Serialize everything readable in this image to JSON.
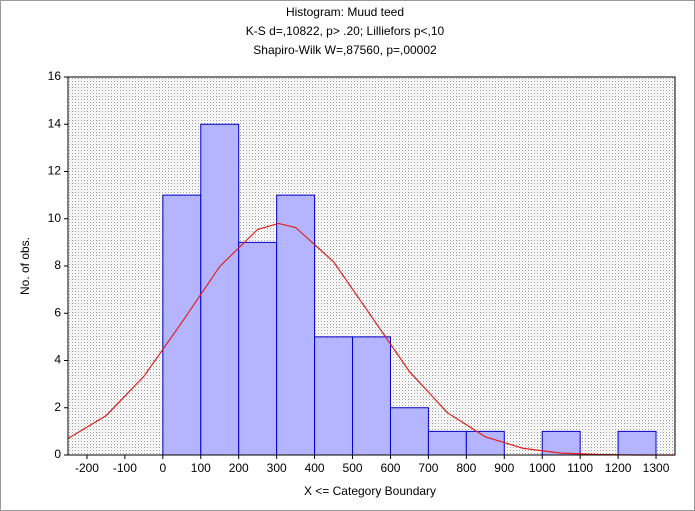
{
  "chart_data": {
    "type": "histogram",
    "title": "Histogram: Muud teed",
    "subtitle": [
      "K-S d=,10822, p> .20; Lilliefors p<,10",
      "Shapiro-Wilk W=,87560, p=,00002"
    ],
    "xlabel": "X <= Category Boundary",
    "ylabel": "No. of obs.",
    "bins": [
      0,
      100,
      200,
      300,
      400,
      500,
      600,
      700,
      800,
      900,
      1000,
      1100,
      1200,
      1300
    ],
    "counts": [
      11,
      14,
      9,
      11,
      5,
      5,
      2,
      1,
      1,
      0,
      1,
      0,
      1
    ],
    "color": "#b4b4ff",
    "edgecolor": "#0000c8",
    "curve": {
      "color": "#e02020",
      "x": [
        -250,
        -150,
        -50,
        50,
        150,
        250,
        305,
        350,
        450,
        550,
        650,
        750,
        850,
        950,
        1050,
        1150,
        1250,
        1350
      ],
      "y": [
        0.7,
        1.66,
        3.33,
        5.61,
        7.98,
        9.55,
        9.8,
        9.63,
        8.18,
        5.86,
        3.53,
        1.79,
        0.77,
        0.28,
        0.08,
        0.02,
        0,
        0
      ]
    },
    "xlim": [
      -250,
      1350
    ],
    "xticks": [
      -200,
      -100,
      0,
      100,
      200,
      300,
      400,
      500,
      600,
      700,
      800,
      900,
      1000,
      1100,
      1200,
      1300
    ],
    "ylim": [
      0,
      16
    ],
    "yticks": [
      0,
      2,
      4,
      6,
      8,
      10,
      12,
      14,
      16
    ],
    "grid": false
  }
}
